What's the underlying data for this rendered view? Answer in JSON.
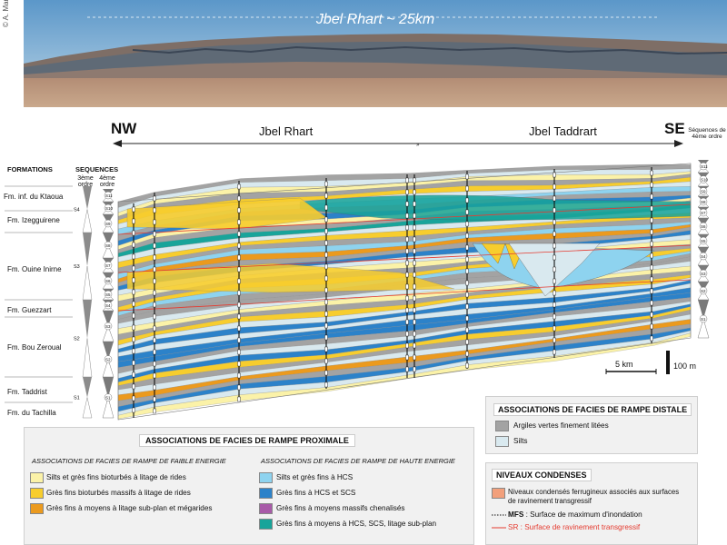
{
  "photo": {
    "title": "Jbel Rhart ~ 25km",
    "credit": "© A. Marante"
  },
  "section": {
    "nw_label": "NW",
    "se_label": "SE",
    "jbel_rhart": "Jbel Rhart",
    "jbel_taddrart": "Jbel Taddrart",
    "formations_header": "FORMATIONS",
    "sequences_header": "SEQUENCES",
    "order3": "3ème ordre",
    "order4": "4ème ordre",
    "seq4_right_label": "Séquences de 4ème ordre",
    "scale_km": "5 km",
    "scale_m": "100 m"
  },
  "formations": [
    "Fm. inf. du Ktaoua",
    "Fm. Izegguirene",
    "Fm. Ouine Inirne",
    "Fm. Guezzart",
    "Fm. Bou Zeroual",
    "Fm. Taddrist",
    "Fm. du Tachilla"
  ],
  "seq3": [
    "S4",
    "S3",
    "S2",
    "S1"
  ],
  "seq4_left": [
    "S11",
    "S10",
    "S9",
    "S8",
    "S7",
    "S6",
    "S5",
    "S4",
    "S3",
    "S2",
    "S1"
  ],
  "seq4_right": [
    "S11",
    "S10",
    "S9",
    "S8",
    "S7",
    "S6",
    "S5",
    "S4",
    "S3",
    "S2",
    "S1"
  ],
  "legend_proximal": {
    "title": "ASSOCIATIONS DE FACIES DE RAMPE PROXIMALE",
    "low_title": "ASSOCIATIONS DE FACIES DE RAMPE DE FAIBLE ENERGIE",
    "high_title": "ASSOCIATIONS DE FACIES DE RAMPE DE HAUTE ENERGIE",
    "low_items": [
      {
        "label": "Silts et grès fins bioturbés à litage de rides",
        "color": "#fbf2a8"
      },
      {
        "label": "Grès fins bioturbés massifs à litage de rides",
        "color": "#f7cd2e"
      },
      {
        "label": "Grès fins à moyens à litage sub-plan et mégarides",
        "color": "#eb9a1e"
      }
    ],
    "high_items": [
      {
        "label": "Silts et grès fins à HCS",
        "color": "#8ed3ef"
      },
      {
        "label": "Grès fins à HCS et SCS",
        "color": "#2c82c9"
      },
      {
        "label": "Grès fins à moyens massifs chenalisés",
        "color": "#a85aa8"
      },
      {
        "label": "Grès fins à moyens à HCS, SCS, litage sub-plan",
        "color": "#18a49a"
      }
    ]
  },
  "legend_distal": {
    "title": "ASSOCIATIONS DE FACIES DE RAMPE DISTALE",
    "items": [
      {
        "label": "Argiles vertes finement litées",
        "color": "#a3a3a3"
      },
      {
        "label": "Silts",
        "color": "#d9e9ef"
      }
    ]
  },
  "legend_condensed": {
    "title": "NIVEAUX CONDENSES",
    "ferr_line1": "Niveaux condensés ferrugineux associés aux surfaces",
    "ferr_line2": "de ravinement transgressif",
    "ferr_color": "#f2a07c",
    "mfs_abbr": "MFS",
    "mfs_text": " : Surface de maximum d'inondation",
    "sr_text": "SR : Surface de ravinement transgressif",
    "sr_color": "#e53a2f"
  }
}
